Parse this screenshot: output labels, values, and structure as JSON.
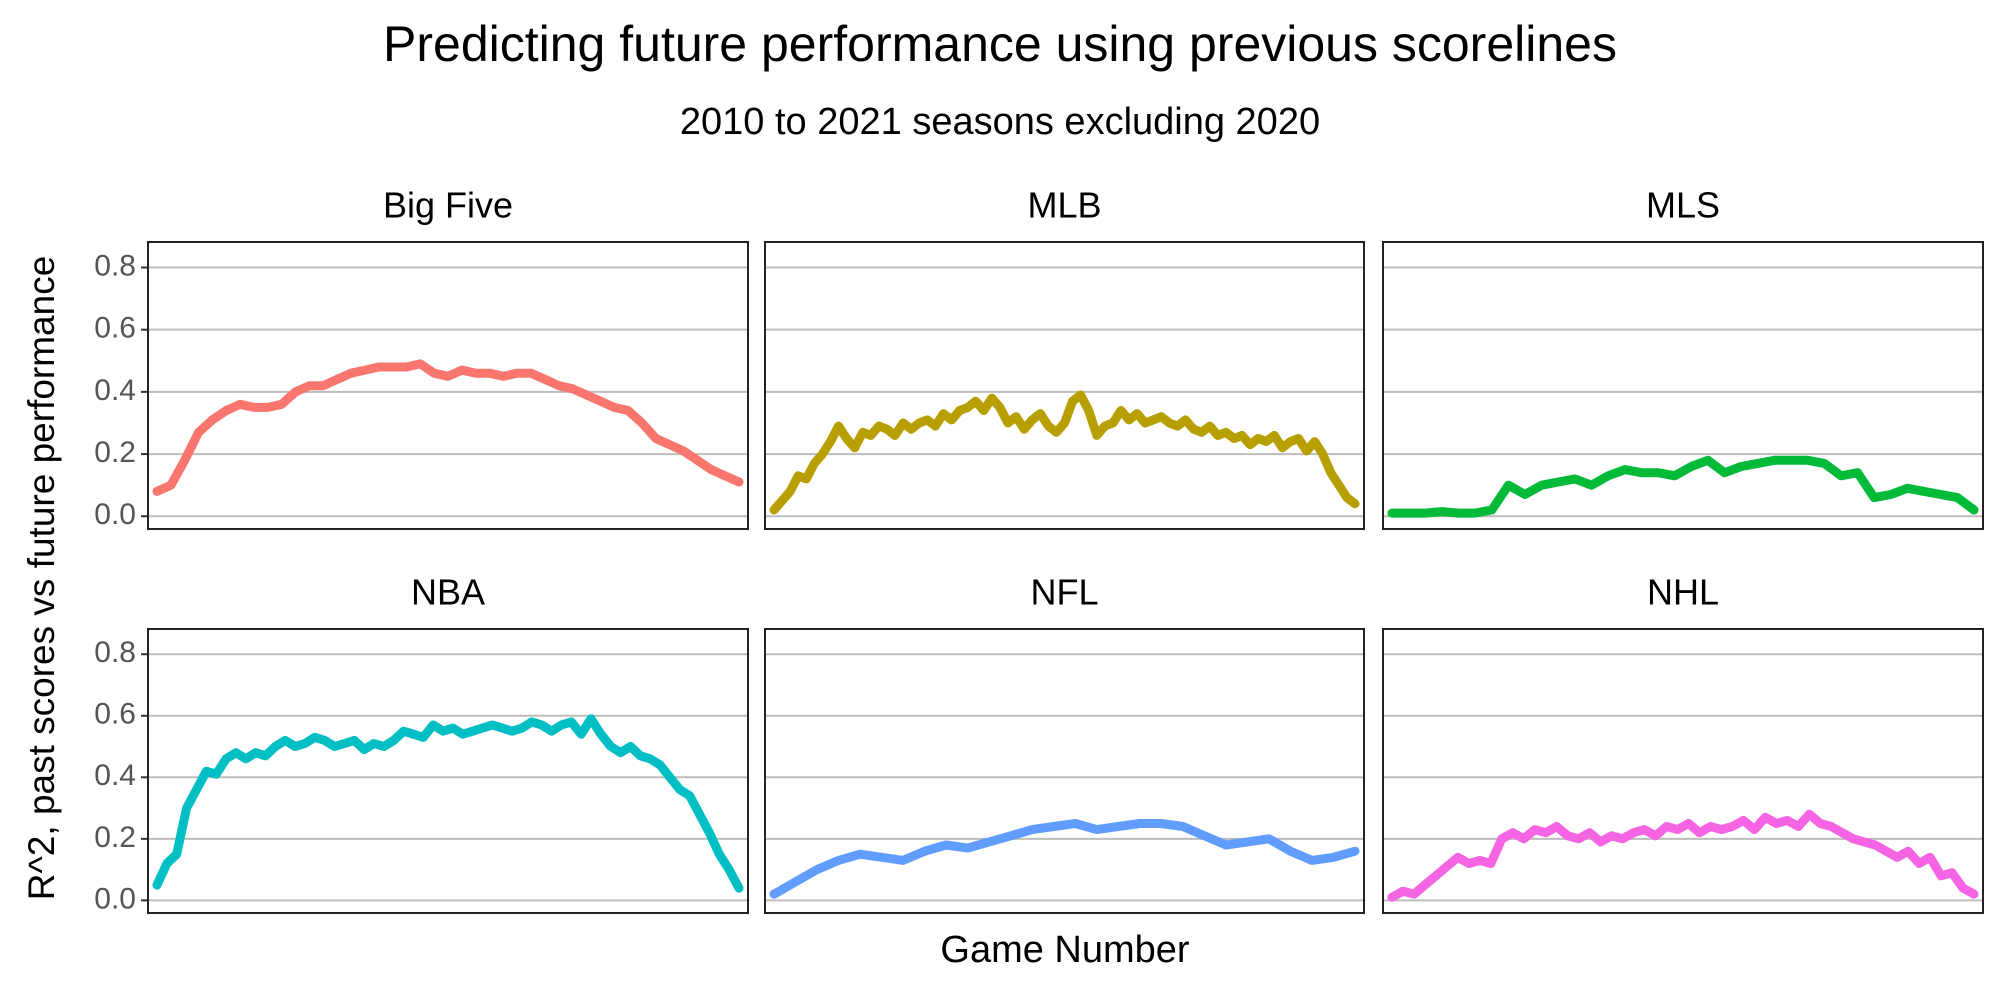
{
  "chart_data": {
    "type": "line",
    "title": "Predicting future performance using previous scorelines",
    "subtitle": "2010 to 2021 seasons excluding 2020",
    "y_label": "R^2, past scores vs future performance",
    "x_label": "Game Number",
    "ylim": [
      -0.041,
      0.882
    ],
    "yticks": [
      {
        "value": 0,
        "label": "0.0"
      },
      0.2,
      0.4,
      0.6,
      0.8
    ],
    "grid": true,
    "series": [
      {
        "name": "Big Five",
        "color": "#F8766D",
        "values": [
          0.08,
          0.1,
          0.18,
          0.27,
          0.31,
          0.34,
          0.36,
          0.35,
          0.35,
          0.36,
          0.4,
          0.42,
          0.42,
          0.44,
          0.46,
          0.47,
          0.48,
          0.48,
          0.48,
          0.49,
          0.46,
          0.45,
          0.47,
          0.46,
          0.46,
          0.45,
          0.46,
          0.46,
          0.44,
          0.42,
          0.41,
          0.39,
          0.37,
          0.35,
          0.34,
          0.3,
          0.25,
          0.23,
          0.21,
          0.18,
          0.15,
          0.13,
          0.11
        ]
      },
      {
        "name": "MLB",
        "color": "#B79F00",
        "values": [
          0.02,
          0.05,
          0.08,
          0.13,
          0.12,
          0.17,
          0.2,
          0.24,
          0.29,
          0.25,
          0.22,
          0.27,
          0.26,
          0.29,
          0.28,
          0.26,
          0.3,
          0.28,
          0.3,
          0.31,
          0.29,
          0.33,
          0.31,
          0.34,
          0.35,
          0.37,
          0.34,
          0.38,
          0.35,
          0.3,
          0.32,
          0.28,
          0.31,
          0.33,
          0.29,
          0.27,
          0.3,
          0.37,
          0.39,
          0.34,
          0.26,
          0.29,
          0.3,
          0.34,
          0.31,
          0.33,
          0.3,
          0.31,
          0.32,
          0.3,
          0.29,
          0.31,
          0.28,
          0.27,
          0.29,
          0.26,
          0.27,
          0.25,
          0.26,
          0.23,
          0.25,
          0.24,
          0.26,
          0.22,
          0.24,
          0.25,
          0.21,
          0.24,
          0.2,
          0.14,
          0.1,
          0.06,
          0.04
        ]
      },
      {
        "name": "MLS",
        "color": "#00BA38",
        "values": [
          0.01,
          0.01,
          0.01,
          0.015,
          0.01,
          0.01,
          0.02,
          0.1,
          0.07,
          0.1,
          0.11,
          0.12,
          0.1,
          0.13,
          0.15,
          0.14,
          0.14,
          0.13,
          0.16,
          0.18,
          0.14,
          0.16,
          0.17,
          0.18,
          0.18,
          0.18,
          0.17,
          0.13,
          0.14,
          0.06,
          0.07,
          0.09,
          0.08,
          0.07,
          0.06,
          0.02
        ]
      },
      {
        "name": "NBA",
        "color": "#00BFC4",
        "values": [
          0.05,
          0.12,
          0.15,
          0.3,
          0.36,
          0.42,
          0.41,
          0.46,
          0.48,
          0.46,
          0.48,
          0.47,
          0.5,
          0.52,
          0.5,
          0.51,
          0.53,
          0.52,
          0.5,
          0.51,
          0.52,
          0.49,
          0.51,
          0.5,
          0.52,
          0.55,
          0.54,
          0.53,
          0.57,
          0.55,
          0.56,
          0.54,
          0.55,
          0.56,
          0.57,
          0.56,
          0.55,
          0.56,
          0.58,
          0.57,
          0.55,
          0.57,
          0.58,
          0.54,
          0.59,
          0.54,
          0.5,
          0.48,
          0.5,
          0.47,
          0.46,
          0.44,
          0.4,
          0.36,
          0.34,
          0.28,
          0.22,
          0.15,
          0.1,
          0.04
        ]
      },
      {
        "name": "NFL",
        "color": "#619CFF",
        "values": [
          0.02,
          0.06,
          0.1,
          0.13,
          0.15,
          0.14,
          0.13,
          0.16,
          0.18,
          0.17,
          0.19,
          0.21,
          0.23,
          0.24,
          0.25,
          0.23,
          0.24,
          0.25,
          0.25,
          0.24,
          0.21,
          0.18,
          0.19,
          0.2,
          0.16,
          0.13,
          0.14,
          0.16
        ]
      },
      {
        "name": "NHL",
        "color": "#F564E3",
        "values": [
          0.01,
          0.03,
          0.02,
          0.05,
          0.08,
          0.11,
          0.14,
          0.12,
          0.13,
          0.12,
          0.2,
          0.22,
          0.2,
          0.23,
          0.22,
          0.24,
          0.21,
          0.2,
          0.22,
          0.19,
          0.21,
          0.2,
          0.22,
          0.23,
          0.21,
          0.24,
          0.23,
          0.25,
          0.22,
          0.24,
          0.23,
          0.24,
          0.26,
          0.23,
          0.27,
          0.25,
          0.26,
          0.24,
          0.28,
          0.25,
          0.24,
          0.22,
          0.2,
          0.19,
          0.18,
          0.16,
          0.14,
          0.16,
          0.12,
          0.14,
          0.08,
          0.09,
          0.04,
          0.02
        ]
      }
    ]
  }
}
